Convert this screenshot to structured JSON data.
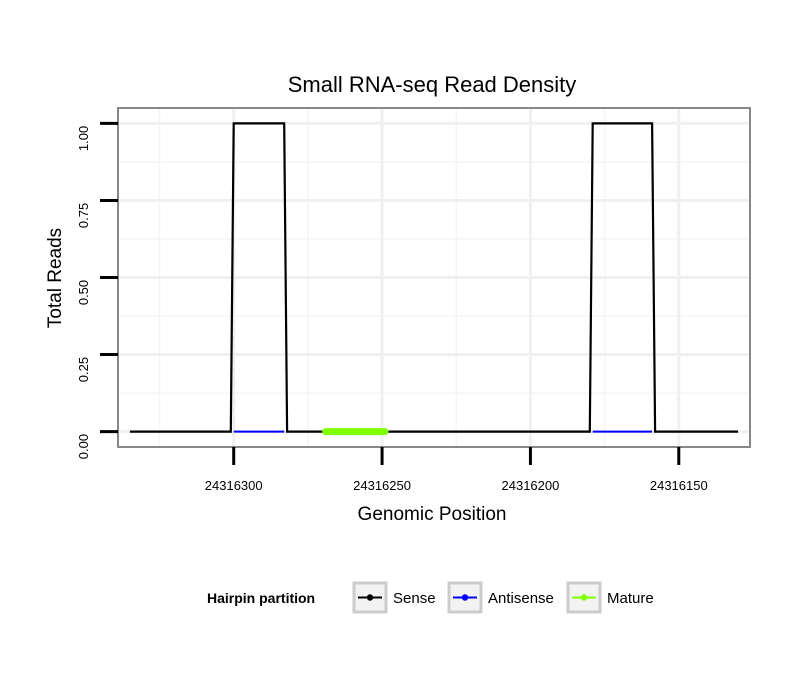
{
  "chart_data": {
    "type": "line",
    "title": "Small RNA-seq Read Density",
    "xlabel": "Genomic Position",
    "ylabel": "Total Reads",
    "x_reversed": true,
    "xlim": [
      24316339,
      24316126
    ],
    "ylim": [
      -0.05,
      1.05
    ],
    "x_ticks": [
      24316300,
      24316250,
      24316200,
      24316150
    ],
    "x_tick_labels": [
      "24316300",
      "24316250",
      "24316200",
      "24316150"
    ],
    "y_ticks": [
      0,
      0.25,
      0.5,
      0.75,
      1
    ],
    "y_tick_labels": [
      "0.00",
      "0.25",
      "0.50",
      "0.75",
      "1.00"
    ],
    "grid": true,
    "legend": {
      "title": "Hairpin partition",
      "position": "bottom",
      "entries": [
        {
          "label": "Sense",
          "color": "#000000"
        },
        {
          "label": "Antisense",
          "color": "#0000ff"
        },
        {
          "label": "Mature",
          "color": "#7fff00"
        }
      ]
    },
    "series": [
      {
        "name": "Sense",
        "color": "#000000",
        "x": [
          24316335,
          24316301,
          24316300,
          24316283,
          24316282,
          24316180,
          24316179,
          24316159,
          24316158,
          24316130
        ],
        "y": [
          0,
          0,
          1,
          1,
          0,
          0,
          1,
          1,
          0,
          0
        ]
      },
      {
        "name": "Antisense",
        "color": "#0000ff",
        "x": [
          24316300,
          24316283
        ],
        "y": [
          0,
          0
        ],
        "x2": [
          24316179,
          24316159
        ],
        "y2": [
          0,
          0
        ]
      },
      {
        "name": "Mature",
        "color": "#7fff00",
        "x": [
          24316269,
          24316249
        ],
        "y": [
          0,
          0
        ]
      }
    ]
  }
}
